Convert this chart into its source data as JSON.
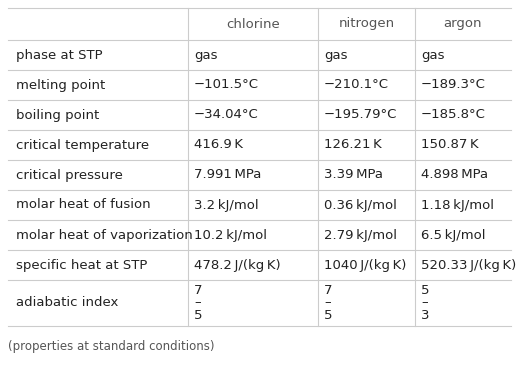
{
  "col_headers": [
    "",
    "chlorine",
    "nitrogen",
    "argon"
  ],
  "rows": [
    [
      "phase at STP",
      "gas",
      "gas",
      "gas"
    ],
    [
      "melting point",
      "−101.5°C",
      "−210.1°C",
      "−189.3°C"
    ],
    [
      "boiling point",
      "−34.04°C",
      "−195.79°C",
      "−185.8°C"
    ],
    [
      "critical temperature",
      "416.9 K",
      "126.21 K",
      "150.87 K"
    ],
    [
      "critical pressure",
      "7.991 MPa",
      "3.39 MPa",
      "4.898 MPa"
    ],
    [
      "molar heat of fusion",
      "3.2 kJ/mol",
      "0.36 kJ/mol",
      "1.18 kJ/mol"
    ],
    [
      "molar heat of vaporization",
      "10.2 kJ/mol",
      "2.79 kJ/mol",
      "6.5 kJ/mol"
    ],
    [
      "specific heat at STP",
      "478.2 J/(kg K)",
      "1040 J/(kg K)",
      "520.33 J/(kg K)"
    ],
    [
      "adiabatic index",
      "7\n–\n5",
      "7\n–\n5",
      "5\n–\n3"
    ]
  ],
  "footer": "(properties at standard conditions)",
  "bg_color": "#ffffff",
  "header_text_color": "#555555",
  "cell_text_color": "#222222",
  "line_color": "#cccccc",
  "font_size": 9.5,
  "footer_font_size": 8.5
}
